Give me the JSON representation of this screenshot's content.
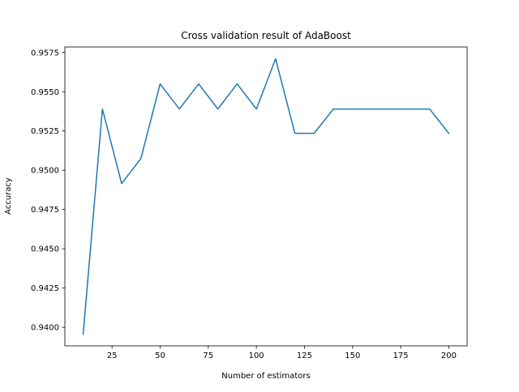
{
  "chart_data": {
    "type": "line",
    "title": "Cross validation result of AdaBoost",
    "xlabel": "Number of estimators",
    "ylabel": "Accuracy",
    "xlim": [
      0.5,
      209.5
    ],
    "ylim": [
      0.93882,
      0.95785
    ],
    "xticks": [
      25,
      50,
      75,
      100,
      125,
      150,
      175,
      200
    ],
    "xtick_labels": [
      "25",
      "50",
      "75",
      "100",
      "125",
      "150",
      "175",
      "200"
    ],
    "yticks": [
      0.94,
      0.9425,
      0.945,
      0.9475,
      0.95,
      0.9525,
      0.955,
      0.9575
    ],
    "ytick_labels": [
      "0.9400",
      "0.9425",
      "0.9450",
      "0.9475",
      "0.9500",
      "0.9525",
      "0.9550",
      "0.9575"
    ],
    "grid": false,
    "legend": null,
    "series": [
      {
        "color": "#1f77b4",
        "x": [
          10,
          20,
          30,
          40,
          50,
          60,
          70,
          80,
          90,
          100,
          110,
          120,
          130,
          140,
          150,
          160,
          170,
          180,
          190,
          200
        ],
        "y": [
          0.93955,
          0.9539,
          0.94915,
          0.95075,
          0.9555,
          0.9539,
          0.9555,
          0.9539,
          0.9555,
          0.9539,
          0.9571,
          0.95235,
          0.95235,
          0.9539,
          0.9539,
          0.9539,
          0.9539,
          0.9539,
          0.9539,
          0.95235
        ]
      }
    ]
  }
}
